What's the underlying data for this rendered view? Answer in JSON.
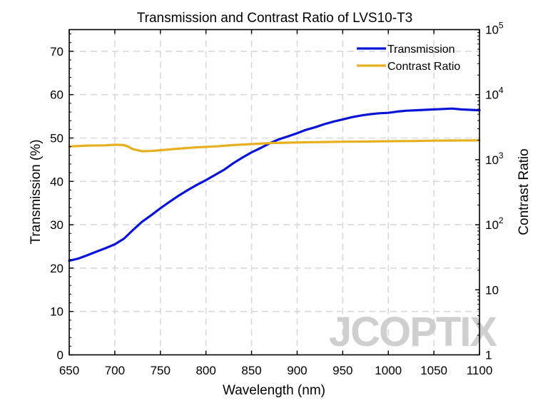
{
  "chart_data": {
    "type": "line",
    "title": "Transmission and Contrast Ratio of LVS10-T3",
    "xlabel": "Wavelength (nm)",
    "ylabel_left": "Transmission (%)",
    "ylabel_right": "Contrast Ratio",
    "xlim": [
      650,
      1100
    ],
    "ylim_left": [
      0,
      75
    ],
    "ylim_right": [
      1,
      100000
    ],
    "yscale_right": "log",
    "x_ticks": [
      "650",
      "700",
      "750",
      "800",
      "850",
      "900",
      "950",
      "1000",
      "1050",
      "1100"
    ],
    "y_left_ticks": [
      "0",
      "10",
      "20",
      "30",
      "40",
      "50",
      "60",
      "70"
    ],
    "y_right_ticks": [
      {
        "base": "1",
        "exp": ""
      },
      {
        "base": "10",
        "exp": ""
      },
      {
        "base": "10",
        "exp": "2"
      },
      {
        "base": "10",
        "exp": "3"
      },
      {
        "base": "10",
        "exp": "4"
      },
      {
        "base": "10",
        "exp": "5"
      }
    ],
    "grid": true,
    "legend_position": "top-right",
    "watermark": "JCOPTIX",
    "series": [
      {
        "name": "Transmission",
        "axis": "left",
        "color": "#0a14d6",
        "x": [
          650,
          660,
          670,
          680,
          690,
          700,
          710,
          715,
          720,
          730,
          740,
          750,
          760,
          770,
          780,
          790,
          800,
          810,
          820,
          830,
          840,
          850,
          860,
          870,
          880,
          890,
          900,
          910,
          920,
          930,
          940,
          950,
          960,
          970,
          980,
          990,
          1000,
          1010,
          1020,
          1030,
          1040,
          1050,
          1060,
          1070,
          1080,
          1090,
          1100
        ],
        "values": [
          21.7,
          22.2,
          23.0,
          23.8,
          24.6,
          25.5,
          26.8,
          27.8,
          28.8,
          30.7,
          32.2,
          33.8,
          35.3,
          36.7,
          38.0,
          39.2,
          40.3,
          41.5,
          42.7,
          44.2,
          45.5,
          46.7,
          47.7,
          48.8,
          49.7,
          50.4,
          51.1,
          51.9,
          52.5,
          53.2,
          53.8,
          54.3,
          54.8,
          55.2,
          55.5,
          55.7,
          55.8,
          56.1,
          56.3,
          56.4,
          56.5,
          56.6,
          56.7,
          56.8,
          56.6,
          56.5,
          56.4
        ]
      },
      {
        "name": "Contrast Ratio",
        "axis": "right",
        "color": "#e8b020",
        "x": [
          650,
          670,
          690,
          700,
          710,
          715,
          720,
          725,
          730,
          740,
          750,
          770,
          790,
          810,
          830,
          850,
          870,
          890,
          910,
          930,
          950,
          970,
          990,
          1010,
          1030,
          1050,
          1070,
          1100
        ],
        "values": [
          1600,
          1650,
          1660,
          1700,
          1680,
          1580,
          1450,
          1400,
          1350,
          1360,
          1400,
          1480,
          1550,
          1600,
          1680,
          1740,
          1800,
          1830,
          1850,
          1870,
          1890,
          1900,
          1920,
          1930,
          1940,
          1960,
          1970,
          1980
        ]
      }
    ]
  }
}
